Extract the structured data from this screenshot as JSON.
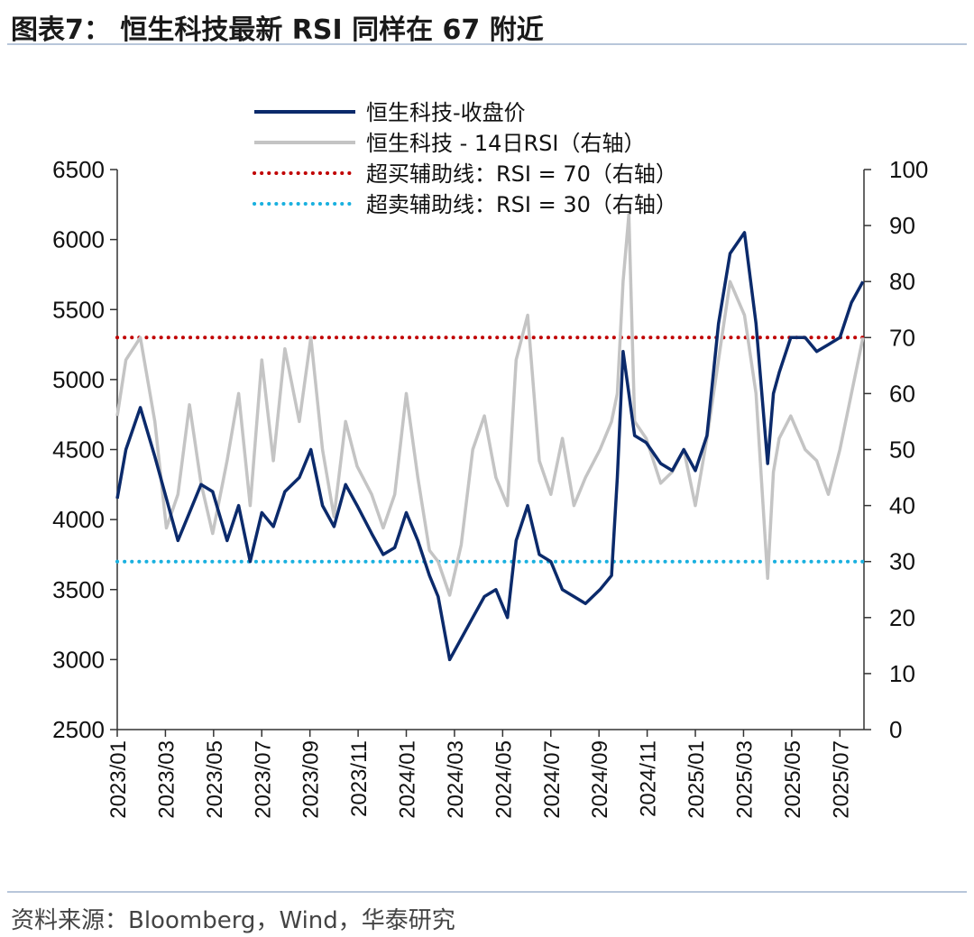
{
  "header": {
    "title": "图表7：  恒生科技最新 RSI 同样在 67 附近"
  },
  "footer": {
    "source": "资料来源：Bloomberg，Wind，华泰研究"
  },
  "colors": {
    "price": "#0b2a6b",
    "rsi": "#c4c4c4",
    "overbought": "#c00000",
    "oversold": "#19b0df",
    "axis": "#333333"
  },
  "chart_data": {
    "type": "line",
    "x_tick_labels": [
      "2023/01",
      "2023/03",
      "2023/05",
      "2023/07",
      "2023/09",
      "2023/11",
      "2024/01",
      "2024/03",
      "2024/05",
      "2024/07",
      "2024/09",
      "2024/11",
      "2025/01",
      "2025/03",
      "2025/05",
      "2025/07"
    ],
    "x_range": [
      "2023/01",
      "2025/08"
    ],
    "y_left": {
      "range": [
        2500,
        6500
      ],
      "ticks": [
        2500,
        3000,
        3500,
        4000,
        4500,
        5000,
        5500,
        6000,
        6500
      ]
    },
    "y_right": {
      "range": [
        0,
        100
      ],
      "ticks": [
        0,
        10,
        20,
        30,
        40,
        50,
        60,
        70,
        80,
        90,
        100
      ]
    },
    "legend": {
      "placement": "top-center",
      "items": [
        {
          "label": "恒生科技-收盘价",
          "style": "solid-navy"
        },
        {
          "label": "恒生科技 - 14日RSI（右轴）",
          "style": "solid-gray"
        },
        {
          "label": "超买辅助线：RSI = 70（右轴）",
          "style": "dotted-red"
        },
        {
          "label": "超卖辅助线：RSI = 30（右轴）",
          "style": "dotted-cyan"
        }
      ]
    },
    "series": [
      {
        "name": "恒生科技-收盘价",
        "axis": "left",
        "x": [
          2023.0,
          2023.03,
          2023.08,
          2023.13,
          2023.17,
          2023.21,
          2023.25,
          2023.29,
          2023.33,
          2023.38,
          2023.42,
          2023.46,
          2023.5,
          2023.54,
          2023.58,
          2023.63,
          2023.67,
          2023.71,
          2023.75,
          2023.79,
          2023.83,
          2023.88,
          2023.92,
          2023.96,
          2024.0,
          2024.04,
          2024.08,
          2024.11,
          2024.15,
          2024.19,
          2024.23,
          2024.27,
          2024.31,
          2024.35,
          2024.38,
          2024.42,
          2024.46,
          2024.5,
          2024.54,
          2024.58,
          2024.62,
          2024.67,
          2024.71,
          2024.73,
          2024.75,
          2024.77,
          2024.79,
          2024.83,
          2024.88,
          2024.92,
          2024.96,
          2025.0,
          2025.04,
          2025.08,
          2025.12,
          2025.17,
          2025.21,
          2025.25,
          2025.27,
          2025.29,
          2025.33,
          2025.38,
          2025.42,
          2025.46,
          2025.5,
          2025.54,
          2025.58
        ],
        "values": [
          4150,
          4500,
          4800,
          4450,
          4150,
          3850,
          4050,
          4250,
          4200,
          3850,
          4100,
          3700,
          4050,
          3950,
          4200,
          4300,
          4500,
          4100,
          3950,
          4250,
          4100,
          3900,
          3750,
          3800,
          4050,
          3850,
          3600,
          3450,
          3000,
          3150,
          3300,
          3450,
          3500,
          3300,
          3850,
          4100,
          3750,
          3700,
          3500,
          3450,
          3400,
          3500,
          3600,
          4300,
          5200,
          4900,
          4600,
          4550,
          4400,
          4350,
          4500,
          4350,
          4600,
          5400,
          5900,
          6050,
          5400,
          4400,
          4900,
          5050,
          5300,
          5300,
          5200,
          5250,
          5300,
          5550,
          5700
        ]
      },
      {
        "name": "恒生科技 - 14日RSI（右轴）",
        "axis": "right",
        "x": [
          2023.0,
          2023.03,
          2023.08,
          2023.13,
          2023.17,
          2023.21,
          2023.25,
          2023.29,
          2023.33,
          2023.38,
          2023.42,
          2023.46,
          2023.5,
          2023.54,
          2023.58,
          2023.63,
          2023.67,
          2023.71,
          2023.75,
          2023.79,
          2023.83,
          2023.88,
          2023.92,
          2023.96,
          2024.0,
          2024.04,
          2024.08,
          2024.11,
          2024.15,
          2024.19,
          2024.23,
          2024.27,
          2024.31,
          2024.35,
          2024.38,
          2024.42,
          2024.46,
          2024.5,
          2024.54,
          2024.58,
          2024.62,
          2024.67,
          2024.71,
          2024.73,
          2024.75,
          2024.77,
          2024.79,
          2024.83,
          2024.88,
          2024.92,
          2024.96,
          2025.0,
          2025.04,
          2025.08,
          2025.12,
          2025.17,
          2025.21,
          2025.25,
          2025.27,
          2025.29,
          2025.33,
          2025.38,
          2025.42,
          2025.46,
          2025.5,
          2025.54,
          2025.58
        ],
        "values": [
          56,
          66,
          70,
          55,
          36,
          42,
          58,
          44,
          35,
          48,
          60,
          40,
          66,
          48,
          68,
          55,
          70,
          50,
          38,
          55,
          47,
          42,
          36,
          42,
          60,
          45,
          32,
          30,
          24,
          33,
          50,
          56,
          45,
          40,
          66,
          74,
          48,
          42,
          52,
          40,
          45,
          50,
          55,
          60,
          80,
          92,
          55,
          52,
          44,
          46,
          50,
          40,
          52,
          66,
          80,
          74,
          60,
          27,
          46,
          52,
          56,
          50,
          48,
          42,
          50,
          60,
          70
        ]
      }
    ],
    "reference_lines": [
      {
        "name": "超买辅助线：RSI = 70（右轴）",
        "axis": "right",
        "value": 70
      },
      {
        "name": "超卖辅助线：RSI = 30（右轴）",
        "axis": "right",
        "value": 30
      }
    ],
    "grid": false
  }
}
